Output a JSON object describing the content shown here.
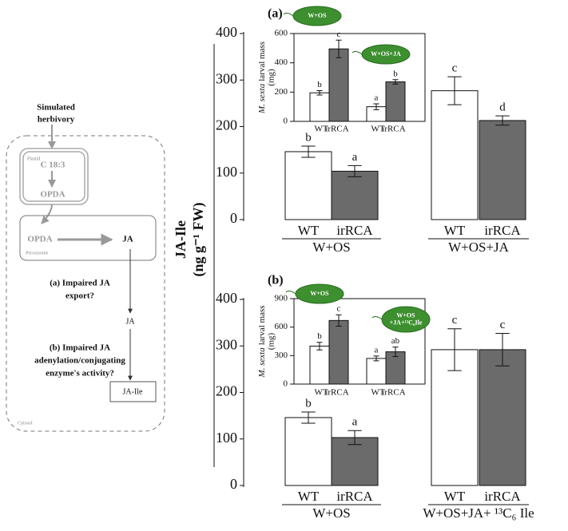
{
  "diagram": {
    "input": [
      "Simulated",
      "herbivory"
    ],
    "plastid_label": "Plastid",
    "precursor": "C 18:3",
    "plastid_product": "OPDA",
    "peroxisome_input": "OPDA",
    "peroxisome_product": "JA",
    "peroxisome_label": "Peroxisome",
    "question_a": [
      "(a) Impaired JA",
      "export?"
    ],
    "cytosol_ja": "JA",
    "question_b": [
      "(b) Impaired JA",
      "adenylation/conjugating",
      "enzyme's activity?"
    ],
    "end_product": "JA-Ile",
    "cytosol_label": "Cytosol"
  },
  "chart_data": [
    {
      "type": "bar",
      "title": "(a)",
      "ylabel": [
        "JA-Ile",
        "(ng g⁻¹ FW)"
      ],
      "categories": [
        "WT",
        "irRCA",
        "WT",
        "irRCA"
      ],
      "groups": [
        "W+OS",
        "W+OS+JA"
      ],
      "values": [
        146,
        104,
        277,
        213
      ],
      "errors": [
        12,
        12,
        30,
        10
      ],
      "letters": [
        "b",
        "a",
        "c",
        "d"
      ],
      "colors": [
        "#ffffff",
        "#6b6b6b",
        "#ffffff",
        "#6b6b6b"
      ],
      "ylim": [
        0,
        400
      ],
      "yticks": [
        0,
        100,
        200,
        300,
        400
      ]
    },
    {
      "type": "bar",
      "ylabel": [
        "M. sexta",
        "larval mass",
        "(mg)"
      ],
      "categories": [
        "WT",
        "irRCA",
        "WT",
        "irRCA"
      ],
      "treatments": [
        [
          "W+OS"
        ],
        [
          "W+OS+JA"
        ]
      ],
      "values": [
        195,
        495,
        100,
        270
      ],
      "errors": [
        15,
        60,
        20,
        15
      ],
      "letters": [
        "b",
        "c",
        "a",
        "b"
      ],
      "colors": [
        "#ffffff",
        "#6b6b6b",
        "#ffffff",
        "#6b6b6b"
      ],
      "ylim": [
        0,
        600
      ],
      "yticks": [
        0,
        200,
        400,
        600
      ]
    },
    {
      "type": "bar",
      "title": "(b)",
      "categories": [
        "WT",
        "irRCA",
        "WT",
        "irRCA"
      ],
      "groups": [
        "W+OS",
        "W+OS+JA+ ¹³C₆ Ile"
      ],
      "values": [
        146,
        103,
        292,
        292
      ],
      "errors": [
        12,
        15,
        45,
        35
      ],
      "letters": [
        "b",
        "a",
        "c",
        "c"
      ],
      "colors": [
        "#ffffff",
        "#6b6b6b",
        "#ffffff",
        "#6b6b6b"
      ],
      "ylim": [
        0,
        400
      ],
      "yticks": [
        0,
        100,
        200,
        300,
        400
      ]
    },
    {
      "type": "bar",
      "ylabel": [
        "M. sexta",
        "larval mass",
        "(mg)"
      ],
      "categories": [
        "WT",
        "irRCA",
        "WT",
        "irRCA"
      ],
      "treatments": [
        [
          "W+OS"
        ],
        [
          "W+OS",
          "+JA+¹³C₆Ile"
        ]
      ],
      "values": [
        400,
        670,
        270,
        340
      ],
      "errors": [
        40,
        60,
        25,
        50
      ],
      "letters": [
        "b",
        "c",
        "a",
        "ab"
      ],
      "colors": [
        "#ffffff",
        "#6b6b6b",
        "#ffffff",
        "#6b6b6b"
      ],
      "ylim": [
        0,
        900
      ],
      "yticks": [
        0,
        300,
        600,
        900
      ]
    }
  ]
}
